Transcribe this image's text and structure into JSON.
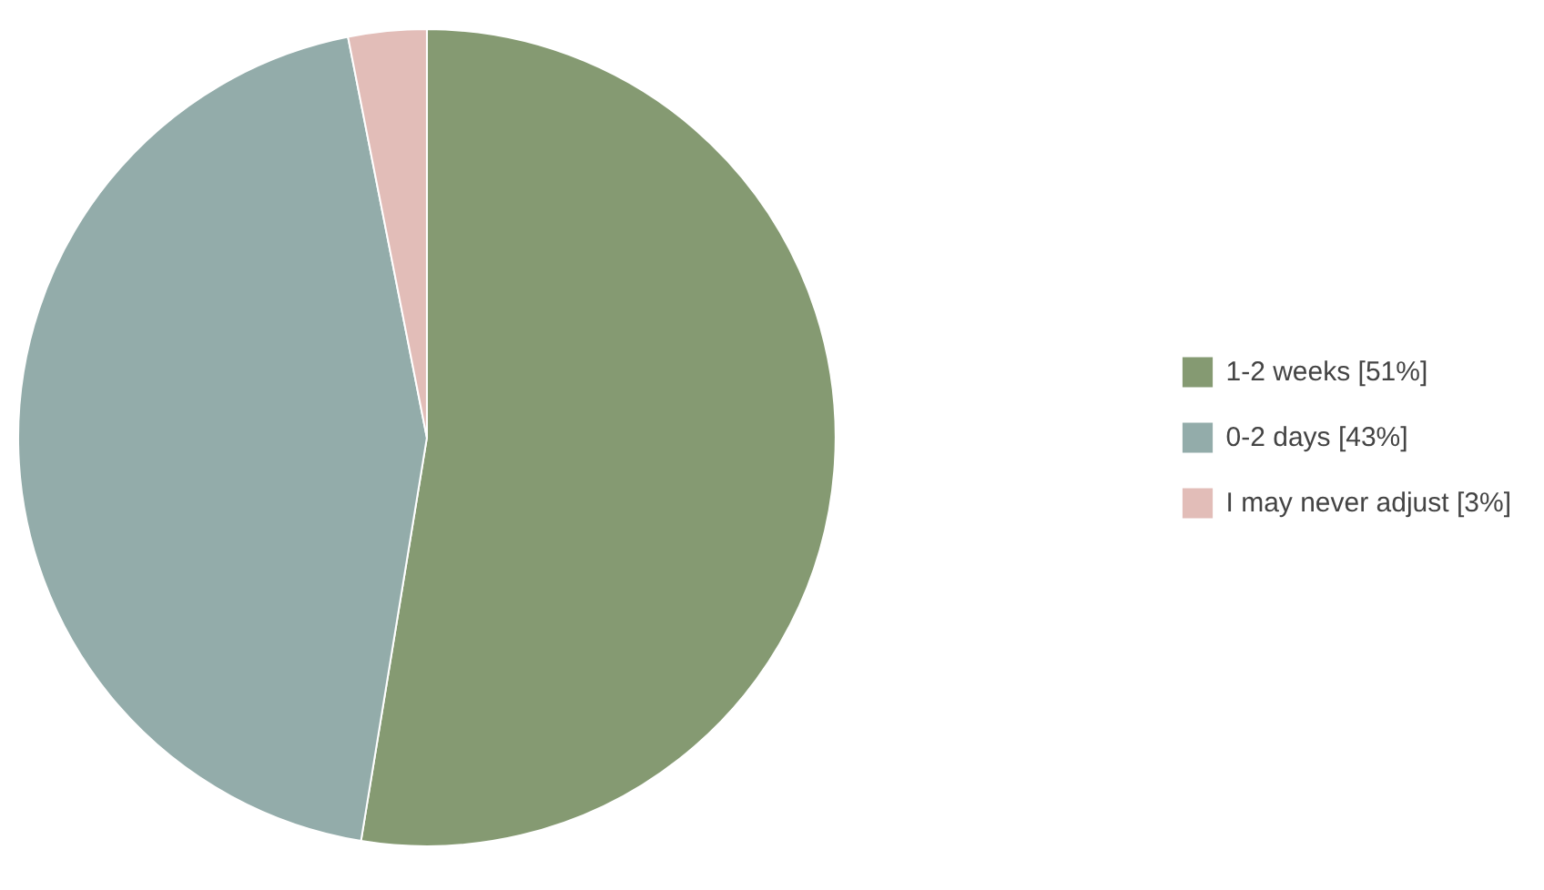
{
  "chart_data": {
    "type": "pie",
    "categories": [
      "1-2 weeks [51%]",
      "0-2 days [43%]",
      "I may never adjust [3%]"
    ],
    "values": [
      51,
      43,
      3
    ],
    "colors": [
      "#859a72",
      "#93acaa",
      "#e2bdb8"
    ],
    "legend": "right"
  }
}
